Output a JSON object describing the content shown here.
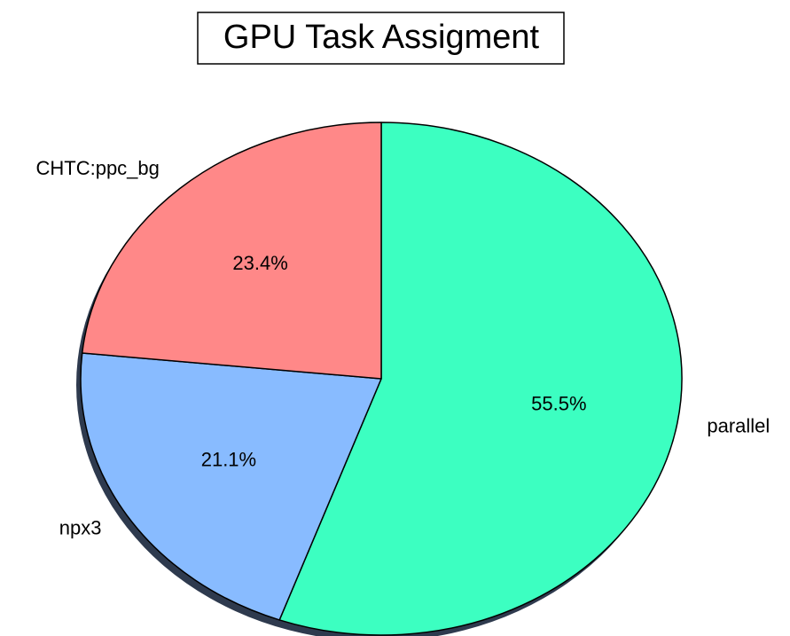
{
  "chart_data": {
    "type": "pie",
    "title": "GPU Task Assigment",
    "categories": [
      "parallel",
      "npx3",
      "CHTC:ppc_bg"
    ],
    "values": [
      55.5,
      21.1,
      23.4
    ],
    "value_labels": [
      "55.5%",
      "21.1%",
      "23.4%"
    ],
    "colors": [
      "#3cffc1",
      "#88bbff",
      "#ff8888"
    ],
    "shadow": true
  }
}
